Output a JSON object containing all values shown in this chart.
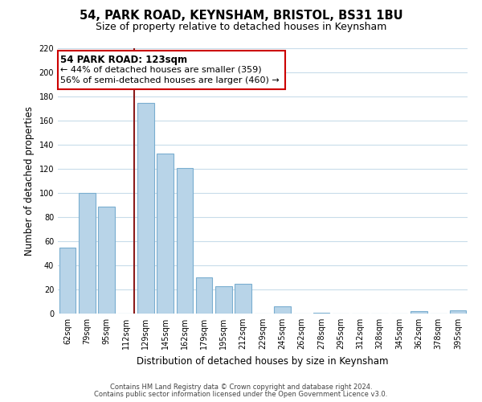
{
  "title": "54, PARK ROAD, KEYNSHAM, BRISTOL, BS31 1BU",
  "subtitle": "Size of property relative to detached houses in Keynsham",
  "xlabel": "Distribution of detached houses by size in Keynsham",
  "ylabel": "Number of detached properties",
  "bar_labels": [
    "62sqm",
    "79sqm",
    "95sqm",
    "112sqm",
    "129sqm",
    "145sqm",
    "162sqm",
    "179sqm",
    "195sqm",
    "212sqm",
    "229sqm",
    "245sqm",
    "262sqm",
    "278sqm",
    "295sqm",
    "312sqm",
    "328sqm",
    "345sqm",
    "362sqm",
    "378sqm",
    "395sqm"
  ],
  "bar_values": [
    55,
    100,
    89,
    0,
    175,
    133,
    121,
    30,
    23,
    25,
    0,
    6,
    0,
    1,
    0,
    0,
    0,
    0,
    2,
    0,
    3
  ],
  "bar_color": "#b8d4e8",
  "bar_edge_color": "#7aaed0",
  "highlight_line_color": "#8b1a1a",
  "annotation_title": "54 PARK ROAD: 123sqm",
  "annotation_line1": "← 44% of detached houses are smaller (359)",
  "annotation_line2": "56% of semi-detached houses are larger (460) →",
  "annotation_box_color": "#ffffff",
  "annotation_border_color": "#cc0000",
  "ylim": [
    0,
    220
  ],
  "yticks": [
    0,
    20,
    40,
    60,
    80,
    100,
    120,
    140,
    160,
    180,
    200,
    220
  ],
  "footer1": "Contains HM Land Registry data © Crown copyright and database right 2024.",
  "footer2": "Contains public sector information licensed under the Open Government Licence v3.0.",
  "bg_color": "#ffffff",
  "grid_color": "#c8dcea"
}
